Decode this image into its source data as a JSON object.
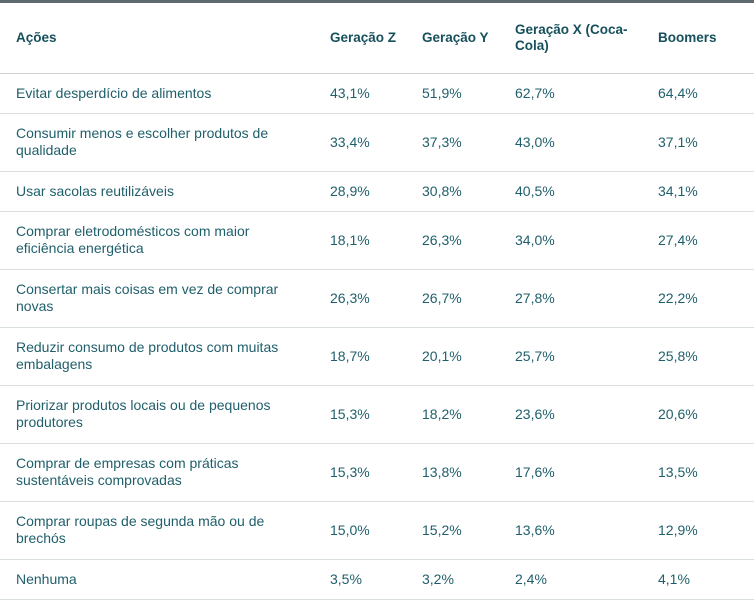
{
  "table": {
    "headers": [
      "Ações",
      "Geração Z",
      "Geração Y",
      "Geração X (Coca-Cola)",
      "Boomers"
    ],
    "rows": [
      [
        "Evitar desperdício de alimentos",
        "43,1%",
        "51,9%",
        "62,7%",
        "64,4%"
      ],
      [
        "Consumir menos e escolher produtos de qualidade",
        "33,4%",
        "37,3%",
        "43,0%",
        "37,1%"
      ],
      [
        "Usar sacolas reutilizáveis",
        "28,9%",
        "30,8%",
        "40,5%",
        "34,1%"
      ],
      [
        "Comprar eletrodomésticos com maior eficiência energética",
        "18,1%",
        "26,3%",
        "34,0%",
        "27,4%"
      ],
      [
        "Consertar mais coisas em vez de comprar novas",
        "26,3%",
        "26,7%",
        "27,8%",
        "22,2%"
      ],
      [
        "Reduzir consumo de produtos com muitas embalagens",
        "18,7%",
        "20,1%",
        "25,7%",
        "25,8%"
      ],
      [
        "Priorizar produtos locais ou de pequenos produtores",
        "15,3%",
        "18,2%",
        "23,6%",
        "20,6%"
      ],
      [
        "Comprar de empresas com práticas sustentáveis comprovadas",
        "15,3%",
        "13,8%",
        "17,6%",
        "13,5%"
      ],
      [
        "Comprar roupas de segunda mão ou de brechós",
        "15,0%",
        "15,2%",
        "13,6%",
        "12,9%"
      ],
      [
        "Nenhuma",
        "3,5%",
        "3,2%",
        "2,4%",
        "4,1%"
      ]
    ]
  },
  "colors": {
    "header_text": "#17505c",
    "cell_text": "#1f5f6b",
    "divider": "#d9dedf",
    "top_rule": "#5f6a6f"
  }
}
